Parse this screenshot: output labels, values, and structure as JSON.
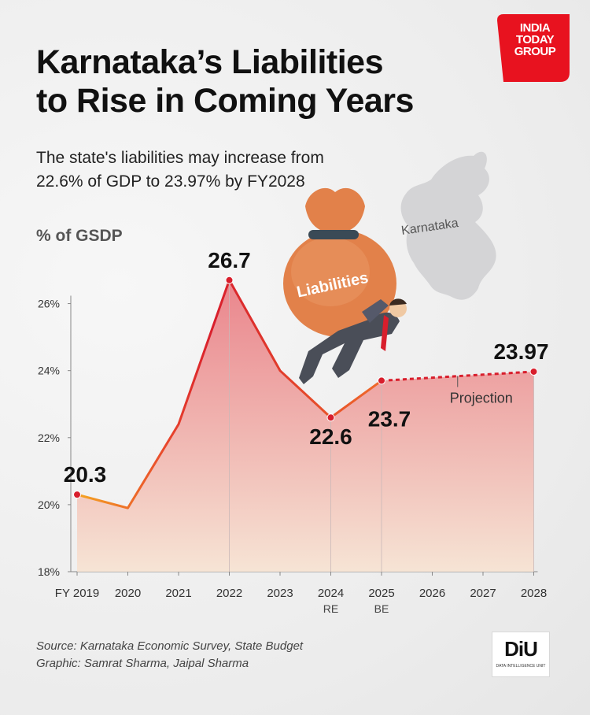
{
  "header": {
    "title_line1": "Karnataka’s Liabilities",
    "title_line2": "to Rise in Coming Years",
    "subtitle_line1": "The state's liabilities may increase from",
    "subtitle_line2": "22.6% of GDP to 23.97% by FY2028",
    "logo_line1": "INDIA",
    "logo_line2": "TODAY",
    "logo_line3": "GROUP"
  },
  "illustration": {
    "map_label": "Karnataka",
    "bag_label": "Liabilities"
  },
  "footer": {
    "source": "Source: Karnataka Economic Survey, State Budget",
    "graphic": "Graphic: Samrat Sharma, Jaipal Sharma",
    "diu_logo": "DiU",
    "diu_subtext": "DATA INTELLIGENCE UNIT"
  },
  "colors": {
    "line_start": "#f5a623",
    "line_mid": "#e8452c",
    "line_peak": "#d81e2c",
    "projection": "#d81e2c",
    "fill_top": "#e8727a",
    "fill_bottom": "#f7e3d2",
    "logo_red": "#e8121f"
  },
  "chart_data": {
    "type": "line",
    "ylabel": "% of GSDP",
    "ylim": [
      18,
      27
    ],
    "yticks": [
      18,
      20,
      22,
      24,
      26
    ],
    "ytick_labels": [
      "18%",
      "20%",
      "22%",
      "24%",
      "26%"
    ],
    "categories": [
      "FY 2019",
      "2020",
      "2021",
      "2022",
      "2023",
      "2024",
      "2025",
      "2026",
      "2027",
      "2028"
    ],
    "category_sublabels": [
      "",
      "",
      "",
      "",
      "",
      "RE",
      "BE",
      "",
      "",
      ""
    ],
    "actual": {
      "x": [
        0,
        1,
        2,
        3,
        4,
        5,
        6
      ],
      "values": [
        20.3,
        19.9,
        22.4,
        26.7,
        24.0,
        22.6,
        23.7
      ]
    },
    "projection": {
      "label": "Projection",
      "x": [
        6,
        7,
        8,
        9
      ],
      "values": [
        23.7,
        23.79,
        23.88,
        23.97
      ]
    },
    "data_labels": [
      {
        "x": 0,
        "value": 20.3,
        "text": "20.3"
      },
      {
        "x": 3,
        "value": 26.7,
        "text": "26.7"
      },
      {
        "x": 5,
        "value": 22.6,
        "text": "22.6"
      },
      {
        "x": 6,
        "value": 23.7,
        "text": "23.7"
      },
      {
        "x": 9,
        "value": 23.97,
        "text": "23.97"
      }
    ],
    "grid": false
  }
}
